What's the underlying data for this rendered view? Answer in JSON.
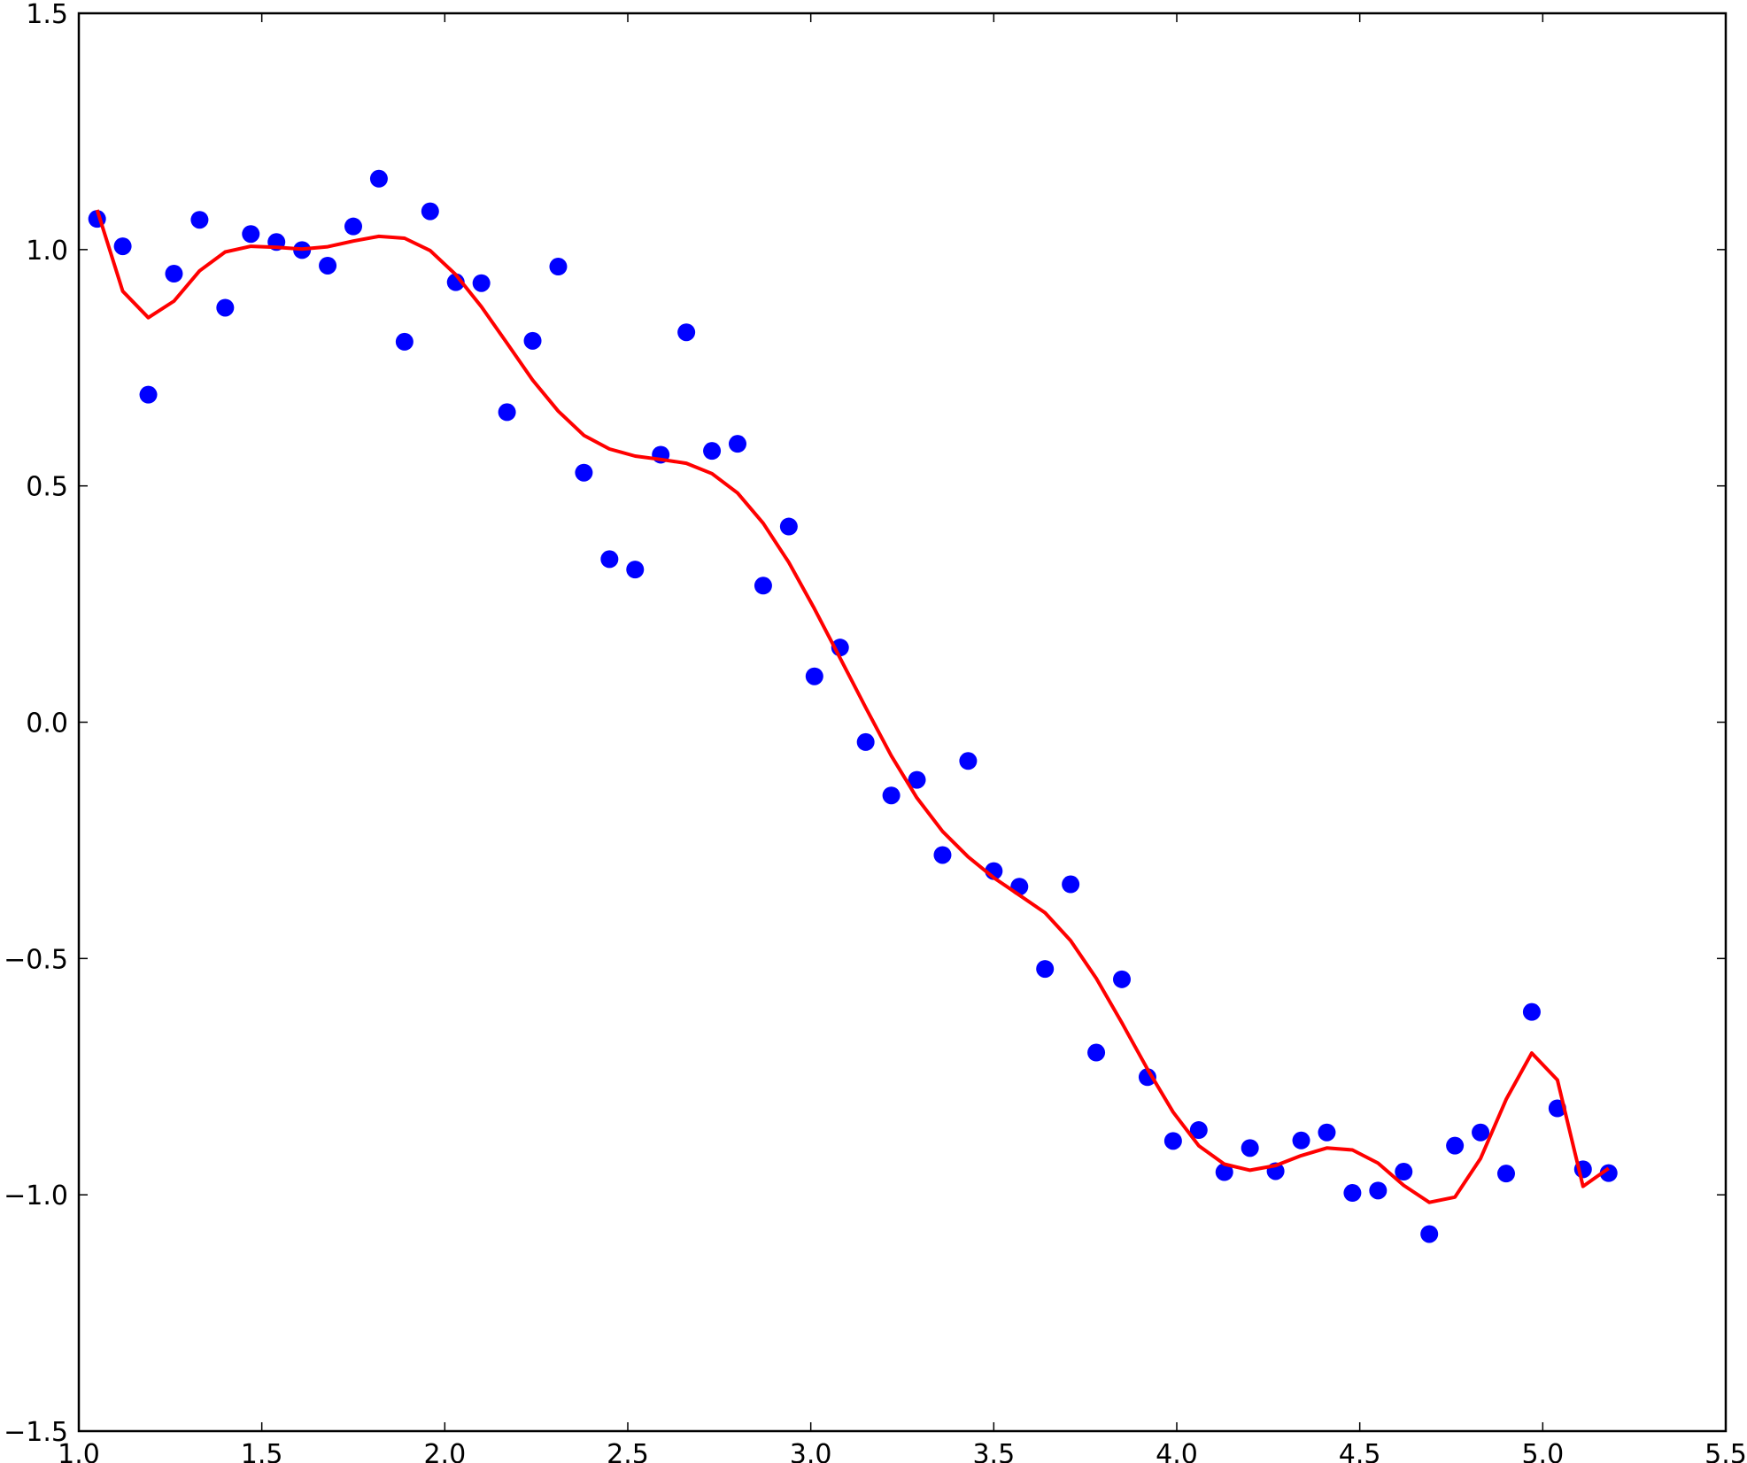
{
  "chart_data": {
    "type": "scatter",
    "title": "",
    "xlabel": "",
    "ylabel": "",
    "xlim": [
      1.0,
      5.5
    ],
    "ylim": [
      -1.5,
      1.5
    ],
    "grid": false,
    "x_ticks": [
      "1.0",
      "1.5",
      "2.0",
      "2.5",
      "3.0",
      "3.5",
      "4.0",
      "4.5",
      "5.0",
      "5.5"
    ],
    "y_ticks": [
      "−1.5",
      "−1.0",
      "−0.5",
      "0.0",
      "0.5",
      "1.0",
      "1.5"
    ],
    "x_tick_values": [
      1.0,
      1.5,
      2.0,
      2.5,
      3.0,
      3.5,
      4.0,
      4.5,
      5.0,
      5.5
    ],
    "y_tick_values": [
      -1.5,
      -1.0,
      -0.5,
      0.0,
      0.5,
      1.0,
      1.5
    ],
    "series": [
      {
        "kind": "scatter",
        "color": "#0000ff",
        "x": [
          1.05,
          1.12,
          1.19,
          1.26,
          1.33,
          1.4,
          1.47,
          1.54,
          1.61,
          1.68,
          1.75,
          1.82,
          1.89,
          1.96,
          2.03,
          2.1,
          2.17,
          2.24,
          2.31,
          2.38,
          2.45,
          2.52,
          2.59,
          2.66,
          2.73,
          2.8,
          2.87,
          2.94,
          3.01,
          3.08,
          3.15,
          3.22,
          3.29,
          3.36,
          3.43,
          3.5,
          3.57,
          3.64,
          3.71,
          3.78,
          3.85,
          3.92,
          3.99,
          4.06,
          4.13,
          4.2,
          4.27,
          4.34,
          4.41,
          4.48,
          4.55,
          4.62,
          4.69,
          4.76,
          4.83,
          4.9,
          4.97,
          5.04,
          5.11,
          5.18
        ],
        "y": [
          1.065,
          1.007,
          0.693,
          0.949,
          1.063,
          0.877,
          1.033,
          1.016,
          0.999,
          0.966,
          1.049,
          1.15,
          0.805,
          1.081,
          0.931,
          0.929,
          0.656,
          0.807,
          0.964,
          0.528,
          0.345,
          0.323,
          0.566,
          0.825,
          0.574,
          0.589,
          0.289,
          0.414,
          0.097,
          0.158,
          -0.042,
          -0.155,
          -0.122,
          -0.281,
          -0.082,
          -0.315,
          -0.348,
          -0.522,
          -0.343,
          -0.699,
          -0.544,
          -0.751,
          -0.886,
          -0.863,
          -0.952,
          -0.901,
          -0.95,
          -0.885,
          -0.868,
          -0.996,
          -0.991,
          -0.951,
          -1.083,
          -0.896,
          -0.868,
          -0.955,
          -0.613,
          -0.817,
          -0.946,
          -0.954
        ]
      },
      {
        "kind": "line",
        "color": "#ff0000",
        "x": [
          1.05,
          1.12,
          1.19,
          1.26,
          1.33,
          1.4,
          1.47,
          1.54,
          1.61,
          1.68,
          1.75,
          1.82,
          1.89,
          1.96,
          2.03,
          2.1,
          2.17,
          2.24,
          2.31,
          2.38,
          2.45,
          2.52,
          2.59,
          2.66,
          2.73,
          2.8,
          2.87,
          2.94,
          3.01,
          3.08,
          3.15,
          3.22,
          3.29,
          3.36,
          3.43,
          3.5,
          3.57,
          3.64,
          3.71,
          3.78,
          3.85,
          3.92,
          3.99,
          4.06,
          4.13,
          4.2,
          4.27,
          4.34,
          4.41,
          4.48,
          4.55,
          4.62,
          4.69,
          4.76,
          4.83,
          4.9,
          4.97,
          5.04,
          5.11,
          5.18
        ],
        "y": [
          1.084,
          0.912,
          0.856,
          0.891,
          0.955,
          0.995,
          1.007,
          1.005,
          1.001,
          1.006,
          1.018,
          1.028,
          1.024,
          0.998,
          0.947,
          0.879,
          0.802,
          0.724,
          0.658,
          0.607,
          0.578,
          0.563,
          0.556,
          0.548,
          0.526,
          0.485,
          0.421,
          0.338,
          0.24,
          0.136,
          0.031,
          -0.071,
          -0.16,
          -0.231,
          -0.285,
          -0.329,
          -0.366,
          -0.403,
          -0.462,
          -0.542,
          -0.636,
          -0.734,
          -0.825,
          -0.896,
          -0.935,
          -0.948,
          -0.938,
          -0.917,
          -0.901,
          -0.905,
          -0.933,
          -0.98,
          -1.016,
          -1.005,
          -0.923,
          -0.798,
          -0.7,
          -0.757,
          -0.982,
          -0.944
        ]
      }
    ]
  }
}
